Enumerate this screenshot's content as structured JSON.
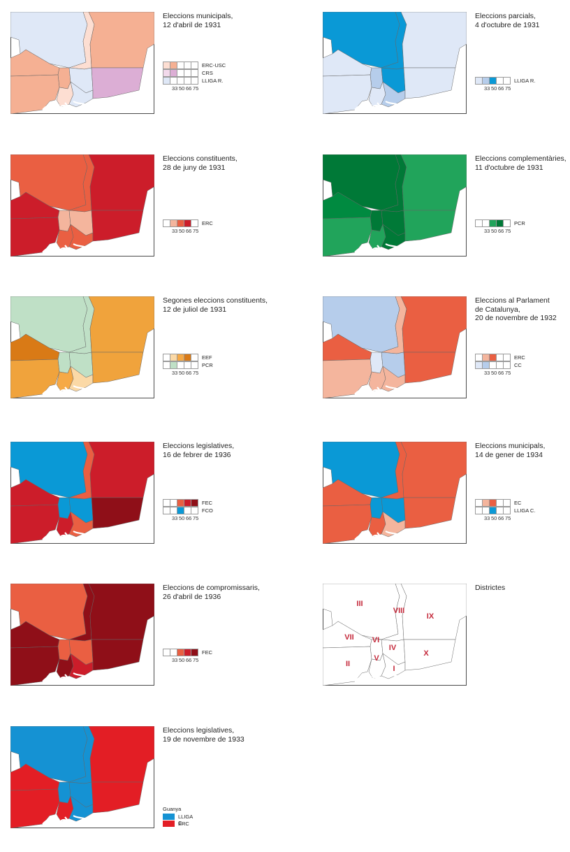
{
  "colors": {
    "orange": [
      "#fdded2",
      "#f5b093",
      "#f19a74",
      "#ec8c63"
    ],
    "blue": [
      "#dfe8f7",
      "#b6cdeb",
      "#8fb2de",
      "#0a99d6"
    ],
    "red": [
      "#f4b59d",
      "#ea5f42",
      "#cc1d2a",
      "#8f0f18"
    ],
    "green": [
      "#bfe0c6",
      "#6cc289",
      "#21a45b",
      "#007937"
    ],
    "amber": [
      "#fbd9a6",
      "#f6a945",
      "#f0a33c",
      "#d97a16"
    ],
    "pink": [
      "#f2d9eb",
      "#dcaed5"
    ],
    "winner_blue": "#1592d3",
    "winner_red": "#e31e25",
    "roman": "#c4283a"
  },
  "panels": [
    {
      "title": "Eleccions municipals,\n12 d'abril de 1931",
      "fills": {
        "III": "#dfe8f7",
        "VIII": "#fdded2",
        "IX": "#f5b093",
        "VII": "#f5b093",
        "VI": "#f5b093",
        "IV": "#dfe8f7",
        "II": "#f5b093",
        "V": "#fdded2",
        "I": "#dfe8f7",
        "X": "#dcaed5"
      },
      "legend": [
        {
          "name": "ERC-USC",
          "boxes": [
            "#fdded2",
            "#f5b093",
            "",
            "",
            ""
          ]
        },
        {
          "name": "CRS",
          "boxes": [
            "#f2d9eb",
            "#dcaed5",
            "",
            "",
            ""
          ]
        },
        {
          "name": "LLIGA R.",
          "boxes": [
            "#dfe8f7",
            "",
            "",
            "",
            ""
          ]
        }
      ],
      "ticks": [
        "33",
        "50",
        "66",
        "75"
      ]
    },
    {
      "title": "Eleccions parcials,\n4 d'octubre de 1931",
      "fills": {
        "III": "#0a99d6",
        "VIII": "#0a99d6",
        "IX": "#dfe8f7",
        "VII": "#dfe8f7",
        "VI": "#b6cdeb",
        "IV": "#0a99d6",
        "II": "#dfe8f7",
        "V": "#dfe8f7",
        "I": "#b6cdeb",
        "X": "#dfe8f7"
      },
      "legend": [
        {
          "name": "LLIGA R.",
          "boxes": [
            "#dfe8f7",
            "#b6cdeb",
            "#0a99d6",
            "",
            ""
          ]
        }
      ],
      "ticks": [
        "33",
        "50",
        "66",
        "75"
      ]
    },
    {
      "title": "Eleccions constituents,\n28 de juny de 1931",
      "fills": {
        "III": "#ea5f42",
        "VIII": "#ea5f42",
        "IX": "#cc1d2a",
        "VII": "#cc1d2a",
        "VI": "#f4b59d",
        "IV": "#f4b59d",
        "II": "#cc1d2a",
        "V": "#ea5f42",
        "I": "#ea5f42",
        "X": "#cc1d2a"
      },
      "legend": [
        {
          "name": "ERC",
          "boxes": [
            "",
            "#f4b59d",
            "#ea5f42",
            "#cc1d2a",
            ""
          ]
        }
      ],
      "ticks": [
        "33",
        "50",
        "66",
        "75"
      ]
    },
    {
      "title": "Eleccions complementàries,\n11 d'octubre de 1931",
      "fills": {
        "III": "#007937",
        "VIII": "#007937",
        "IX": "#21a45b",
        "VII": "#008a40",
        "VI": "#007937",
        "IV": "#007937",
        "II": "#21a45b",
        "V": "#21a45b",
        "I": "#007937",
        "X": "#21a45b"
      },
      "legend": [
        {
          "name": "PCR",
          "boxes": [
            "",
            "",
            "#21a45b",
            "#007937",
            ""
          ]
        }
      ],
      "ticks": [
        "33",
        "50",
        "66",
        "75"
      ]
    },
    {
      "title": "Segones eleccions constituents,\n12 de juliol de 1931",
      "fills": {
        "III": "#bfe0c6",
        "VIII": "#bfe0c6",
        "IX": "#f0a33c",
        "VII": "#d97a16",
        "VI": "#bfe0c6",
        "IV": "#bfe0c6",
        "II": "#f0a33c",
        "V": "#f6a945",
        "I": "#fbd9a6",
        "X": "#f0a33c"
      },
      "legend": [
        {
          "name": "EEF",
          "boxes": [
            "",
            "#fbd9a6",
            "#f6a945",
            "#d97a16",
            ""
          ]
        },
        {
          "name": "PCR",
          "boxes": [
            "",
            "#bfe0c6",
            "",
            "",
            ""
          ]
        }
      ],
      "ticks": [
        "33",
        "50",
        "66",
        "75"
      ]
    },
    {
      "title": "Eleccions al Parlament\nde Catalunya,\n20 de novembre de 1932",
      "fills": {
        "III": "#b6cdeb",
        "VIII": "#f4b59d",
        "IX": "#ea5f42",
        "VII": "#ea5f42",
        "VI": "#dfe8f7",
        "IV": "#b6cdeb",
        "II": "#f4b59d",
        "V": "#f4b59d",
        "I": "#f4b59d",
        "X": "#ea5f42"
      },
      "legend": [
        {
          "name": "ERC",
          "boxes": [
            "",
            "#f4b59d",
            "#ea5f42",
            "",
            ""
          ]
        },
        {
          "name": "CC",
          "boxes": [
            "#dfe8f7",
            "#b6cdeb",
            "",
            "",
            ""
          ]
        }
      ],
      "ticks": [
        "33",
        "50",
        "66",
        "75"
      ]
    },
    {
      "title": "Eleccions legislatives,\n16 de febrer de 1936",
      "fills": {
        "III": "#0a99d6",
        "VIII": "#ea5f42",
        "IX": "#cc1d2a",
        "VII": "#cc1d2a",
        "VI": "#0a99d6",
        "IV": "#0a99d6",
        "II": "#cc1d2a",
        "V": "#cc1d2a",
        "I": "#ea5f42",
        "X": "#8f0f18"
      },
      "legend": [
        {
          "name": "FEC",
          "boxes": [
            "",
            "",
            "#ea5f42",
            "#cc1d2a",
            "#8f0f18"
          ]
        },
        {
          "name": "FCO",
          "boxes": [
            "",
            "",
            "#0a99d6",
            "",
            ""
          ]
        }
      ],
      "ticks": [
        "33",
        "50",
        "66",
        "75"
      ]
    },
    {
      "title": "Eleccions municipals,\n14 de gener de 1934",
      "fills": {
        "III": "#0a99d6",
        "VIII": "#ea5f42",
        "IX": "#ea5f42",
        "VII": "#ea5f42",
        "VI": "#0a99d6",
        "IV": "#0a99d6",
        "II": "#ea5f42",
        "V": "#ea5f42",
        "I": "#f4b59d",
        "X": "#ea5f42"
      },
      "legend": [
        {
          "name": "EC",
          "boxes": [
            "",
            "#f4b59d",
            "#ea5f42",
            "",
            ""
          ]
        },
        {
          "name": "LLIGA C.",
          "boxes": [
            "",
            "",
            "#0a99d6",
            "",
            ""
          ]
        }
      ],
      "ticks": [
        "33",
        "50",
        "66",
        "75"
      ]
    },
    {
      "title": "Eleccions de compromissaris,\n26 d'abril de 1936",
      "fills": {
        "III": "#ea5f42",
        "VIII": "#8f0f18",
        "IX": "#8f0f18",
        "VII": "#8f0f18",
        "VI": "#ea5f42",
        "IV": "#ea5f42",
        "II": "#8f0f18",
        "V": "#8f0f18",
        "I": "#cc1d2a",
        "X": "#8f0f18"
      },
      "legend": [
        {
          "name": "FEC",
          "boxes": [
            "",
            "",
            "#ea5f42",
            "#cc1d2a",
            "#8f0f18"
          ]
        }
      ],
      "ticks": [
        "33",
        "50",
        "66",
        "75"
      ]
    },
    {
      "title": "Districtes",
      "fills": {
        "III": "#ffffff",
        "VIII": "#ffffff",
        "IX": "#ffffff",
        "VII": "#ffffff",
        "VI": "#ffffff",
        "IV": "#ffffff",
        "II": "#ffffff",
        "V": "#ffffff",
        "I": "#ffffff",
        "X": "#ffffff"
      },
      "districts": true,
      "district_labels": [
        "III",
        "VIII",
        "IX",
        "VII",
        "VI",
        "IV",
        "II",
        "V",
        "I",
        "X"
      ]
    },
    {
      "title": "Eleccions legislatives,\n19 de novembre de 1933",
      "fills": {
        "III": "#1592d3",
        "VIII": "#1592d3",
        "IX": "#e31e25",
        "VII": "#e31e25",
        "VI": "#1592d3",
        "IV": "#1592d3",
        "II": "#e31e25",
        "V": "#e31e25",
        "I": "#1592d3",
        "X": "#e31e25"
      },
      "winner": {
        "title": "Guanya",
        "items": [
          {
            "name": "LLIGA C.",
            "color": "#1592d3"
          },
          {
            "name": "ERC",
            "color": "#e31e25"
          }
        ]
      }
    }
  ]
}
